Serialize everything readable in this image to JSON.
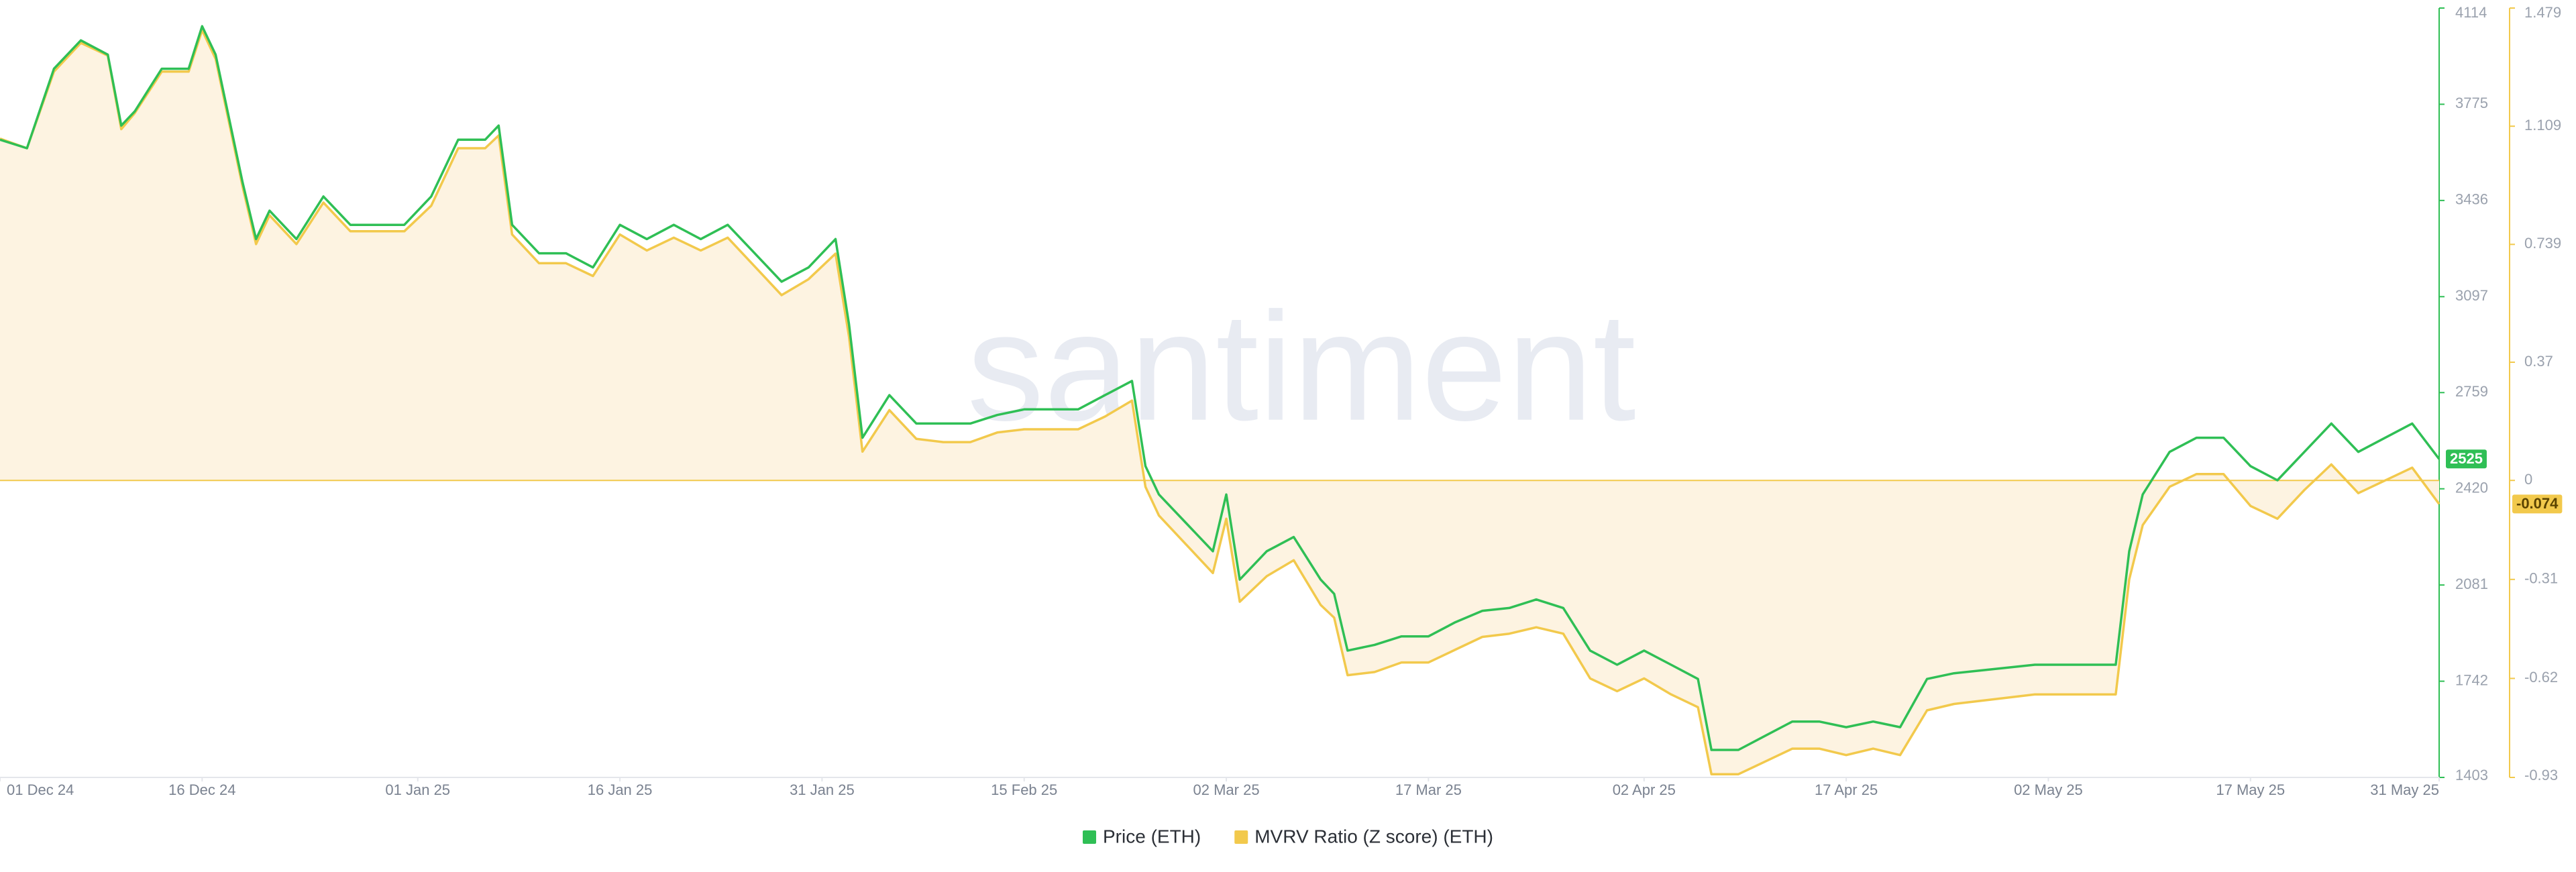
{
  "chart_data": {
    "type": "line",
    "watermark": "santiment",
    "x": [
      "2024-12-01",
      "2024-12-03",
      "2024-12-05",
      "2024-12-07",
      "2024-12-09",
      "2024-12-10",
      "2024-12-11",
      "2024-12-13",
      "2024-12-15",
      "2024-12-16",
      "2024-12-17",
      "2024-12-19",
      "2024-12-20",
      "2024-12-21",
      "2024-12-23",
      "2024-12-25",
      "2024-12-27",
      "2024-12-29",
      "2024-12-31",
      "2025-01-02",
      "2025-01-04",
      "2025-01-06",
      "2025-01-07",
      "2025-01-08",
      "2025-01-10",
      "2025-01-12",
      "2025-01-14",
      "2025-01-16",
      "2025-01-18",
      "2025-01-20",
      "2025-01-22",
      "2025-01-24",
      "2025-01-26",
      "2025-01-28",
      "2025-01-30",
      "2025-02-01",
      "2025-02-02",
      "2025-02-03",
      "2025-02-05",
      "2025-02-07",
      "2025-02-09",
      "2025-02-11",
      "2025-02-13",
      "2025-02-15",
      "2025-02-17",
      "2025-02-19",
      "2025-02-21",
      "2025-02-23",
      "2025-02-24",
      "2025-02-25",
      "2025-02-27",
      "2025-03-01",
      "2025-03-02",
      "2025-03-03",
      "2025-03-05",
      "2025-03-07",
      "2025-03-09",
      "2025-03-10",
      "2025-03-11",
      "2025-03-13",
      "2025-03-15",
      "2025-03-17",
      "2025-03-19",
      "2025-03-21",
      "2025-03-23",
      "2025-03-25",
      "2025-03-27",
      "2025-03-29",
      "2025-03-31",
      "2025-04-02",
      "2025-04-04",
      "2025-04-06",
      "2025-04-07",
      "2025-04-09",
      "2025-04-11",
      "2025-04-13",
      "2025-04-15",
      "2025-04-17",
      "2025-04-19",
      "2025-04-21",
      "2025-04-23",
      "2025-04-25",
      "2025-04-27",
      "2025-04-29",
      "2025-05-01",
      "2025-05-03",
      "2025-05-05",
      "2025-05-07",
      "2025-05-08",
      "2025-05-09",
      "2025-05-11",
      "2025-05-13",
      "2025-05-15",
      "2025-05-17",
      "2025-05-19",
      "2025-05-21",
      "2025-05-23",
      "2025-05-25",
      "2025-05-27",
      "2025-05-29",
      "2025-05-31"
    ],
    "xlim": [
      "2024-12-01",
      "2025-05-31"
    ],
    "xticks": [
      {
        "value": "2024-12-01",
        "label": "01 Dec 24"
      },
      {
        "value": "2024-12-16",
        "label": "16 Dec 24"
      },
      {
        "value": "2025-01-01",
        "label": "01 Jan 25"
      },
      {
        "value": "2025-01-16",
        "label": "16 Jan 25"
      },
      {
        "value": "2025-01-31",
        "label": "31 Jan 25"
      },
      {
        "value": "2025-02-15",
        "label": "15 Feb 25"
      },
      {
        "value": "2025-03-02",
        "label": "02 Mar 25"
      },
      {
        "value": "2025-03-17",
        "label": "17 Mar 25"
      },
      {
        "value": "2025-04-02",
        "label": "02 Apr 25"
      },
      {
        "value": "2025-04-17",
        "label": "17 Apr 25"
      },
      {
        "value": "2025-05-02",
        "label": "02 May 25"
      },
      {
        "value": "2025-05-17",
        "label": "17 May 25"
      },
      {
        "value": "2025-05-31",
        "label": "31 May 25"
      }
    ],
    "ylim": [
      1403,
      4114
    ],
    "yticks": [
      1403,
      1742,
      2081,
      2420,
      2759,
      3097,
      3436,
      3775,
      4114
    ],
    "y2lim": [
      -0.93,
      1.479
    ],
    "y2ticks": [
      -0.93,
      -0.62,
      -0.31,
      0,
      0.37,
      0.739,
      1.109,
      1.479
    ],
    "series": [
      {
        "name": "Price (ETH)",
        "color": "#2fbf55",
        "values": [
          3650,
          3620,
          3900,
          4000,
          3950,
          3700,
          3750,
          3900,
          3900,
          4050,
          3950,
          3500,
          3300,
          3400,
          3300,
          3450,
          3350,
          3350,
          3350,
          3450,
          3650,
          3650,
          3700,
          3350,
          3250,
          3250,
          3200,
          3350,
          3300,
          3350,
          3300,
          3350,
          3250,
          3150,
          3200,
          3300,
          3000,
          2600,
          2750,
          2650,
          2650,
          2650,
          2680,
          2700,
          2700,
          2700,
          2750,
          2800,
          2500,
          2400,
          2300,
          2200,
          2400,
          2100,
          2200,
          2250,
          2100,
          2050,
          1850,
          1870,
          1900,
          1900,
          1950,
          1990,
          2000,
          2030,
          2000,
          1850,
          1800,
          1850,
          1800,
          1750,
          1500,
          1500,
          1550,
          1600,
          1600,
          1580,
          1600,
          1580,
          1750,
          1770,
          1780,
          1790,
          1800,
          1800,
          1800,
          1800,
          2200,
          2400,
          2550,
          2600,
          2600,
          2500,
          2450,
          2550,
          2650,
          2550,
          2600,
          2650,
          2525
        ]
      },
      {
        "name": "MVRV Ratio (Z score) (ETH)",
        "color": "#f2c94c",
        "axis": "y2",
        "area": true,
        "values": [
          1.07,
          1.04,
          1.28,
          1.37,
          1.33,
          1.1,
          1.15,
          1.28,
          1.28,
          1.41,
          1.32,
          0.92,
          0.74,
          0.83,
          0.74,
          0.87,
          0.78,
          0.78,
          0.78,
          0.86,
          1.04,
          1.04,
          1.08,
          0.77,
          0.68,
          0.68,
          0.64,
          0.77,
          0.72,
          0.76,
          0.72,
          0.76,
          0.67,
          0.58,
          0.63,
          0.71,
          0.45,
          0.09,
          0.22,
          0.13,
          0.12,
          0.12,
          0.15,
          0.16,
          0.16,
          0.16,
          0.2,
          0.25,
          -0.02,
          -0.11,
          -0.2,
          -0.29,
          -0.12,
          -0.38,
          -0.3,
          -0.25,
          -0.39,
          -0.43,
          -0.61,
          -0.6,
          -0.57,
          -0.57,
          -0.53,
          -0.49,
          -0.48,
          -0.46,
          -0.48,
          -0.62,
          -0.66,
          -0.62,
          -0.67,
          -0.71,
          -0.92,
          -0.92,
          -0.88,
          -0.84,
          -0.84,
          -0.86,
          -0.84,
          -0.86,
          -0.72,
          -0.7,
          -0.69,
          -0.68,
          -0.67,
          -0.67,
          -0.67,
          -0.67,
          -0.31,
          -0.14,
          -0.02,
          0.02,
          0.02,
          -0.08,
          -0.12,
          -0.03,
          0.05,
          -0.04,
          0.0,
          0.04,
          -0.074
        ]
      }
    ]
  }
}
